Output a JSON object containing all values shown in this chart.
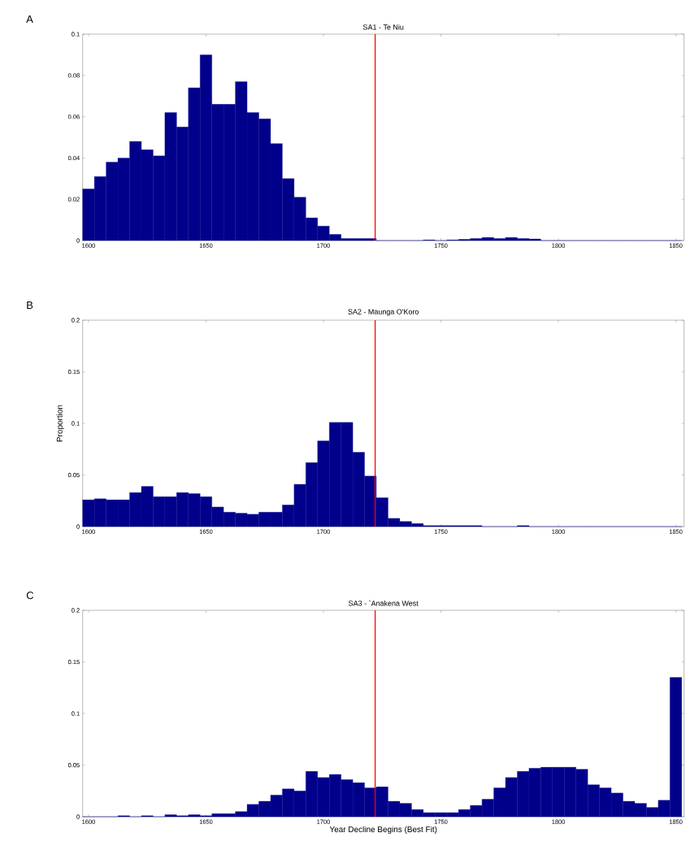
{
  "chart_data": [
    {
      "type": "histogram",
      "title": "SA1 - Te Niu",
      "annotations": [
        "A"
      ],
      "color": "#00008b",
      "bins": [
        1597.5,
        1602.5,
        1607.5,
        1612.5,
        1617.5,
        1622.5,
        1627.5,
        1632.5,
        1637.5,
        1642.5,
        1647.5,
        1652.5,
        1657.5,
        1662.5,
        1667.5,
        1672.5,
        1677.5,
        1682.5,
        1687.5,
        1692.5,
        1697.5,
        1702.5,
        1707.5,
        1712.5,
        1717.5,
        1722.5,
        1727.5,
        1732.5,
        1737.5,
        1742.5,
        1747.5,
        1752.5,
        1757.5,
        1762.5,
        1767.5,
        1772.5,
        1777.5,
        1782.5,
        1787.5,
        1792.5,
        1797.5,
        1802.5,
        1807.5,
        1812.5,
        1817.5,
        1822.5,
        1827.5,
        1832.5,
        1837.5,
        1842.5,
        1847.5,
        1852.5
      ],
      "values": [
        0.025,
        0.031,
        0.038,
        0.04,
        0.048,
        0.044,
        0.041,
        0.062,
        0.055,
        0.074,
        0.09,
        0.066,
        0.066,
        0.077,
        0.062,
        0.059,
        0.047,
        0.03,
        0.021,
        0.011,
        0.007,
        0.003,
        0.001,
        0.001,
        0.001,
        0,
        0,
        0,
        0,
        0.0003,
        0,
        0.0003,
        0.0006,
        0.001,
        0.0015,
        0.001,
        0.0015,
        0.001,
        0.0008,
        0,
        0,
        0,
        0,
        0,
        0,
        0,
        0,
        0,
        0,
        0,
        0
      ],
      "xlim": [
        1597.5,
        1853.5
      ],
      "xticks": [
        1600,
        1650,
        1700,
        1750,
        1800,
        1850
      ],
      "ylim": [
        0,
        0.1
      ],
      "yticks": [
        0,
        0.02,
        0.04,
        0.06,
        0.08,
        0.1
      ],
      "ref_lines": [
        {
          "axis": "x",
          "value": 1722,
          "color": "#ff0000"
        }
      ]
    },
    {
      "type": "histogram",
      "title": "SA2 - Maunga O'Koro",
      "ylabel": "Proportion",
      "annotations": [
        "B"
      ],
      "color": "#00008b",
      "bins": [
        1597.5,
        1602.5,
        1607.5,
        1612.5,
        1617.5,
        1622.5,
        1627.5,
        1632.5,
        1637.5,
        1642.5,
        1647.5,
        1652.5,
        1657.5,
        1662.5,
        1667.5,
        1672.5,
        1677.5,
        1682.5,
        1687.5,
        1692.5,
        1697.5,
        1702.5,
        1707.5,
        1712.5,
        1717.5,
        1722.5,
        1727.5,
        1732.5,
        1737.5,
        1742.5,
        1747.5,
        1752.5,
        1757.5,
        1762.5,
        1767.5,
        1772.5,
        1777.5,
        1782.5,
        1787.5,
        1792.5,
        1797.5,
        1802.5,
        1807.5,
        1812.5,
        1817.5,
        1822.5,
        1827.5,
        1832.5,
        1837.5,
        1842.5,
        1847.5,
        1852.5
      ],
      "values": [
        0.026,
        0.027,
        0.026,
        0.026,
        0.033,
        0.039,
        0.029,
        0.029,
        0.033,
        0.032,
        0.029,
        0.019,
        0.014,
        0.013,
        0.012,
        0.014,
        0.014,
        0.021,
        0.041,
        0.062,
        0.083,
        0.101,
        0.101,
        0.072,
        0.049,
        0.028,
        0.008,
        0.005,
        0.003,
        0.001,
        0.001,
        0.001,
        0.001,
        0.001,
        0,
        0,
        0,
        0.001,
        0,
        0,
        0,
        0,
        0,
        0,
        0,
        0,
        0,
        0,
        0,
        0,
        0
      ],
      "xlim": [
        1597.5,
        1853.5
      ],
      "xticks": [
        1600,
        1650,
        1700,
        1750,
        1800,
        1850
      ],
      "ylim": [
        0,
        0.2
      ],
      "yticks": [
        0,
        0.05,
        0.1,
        0.15,
        0.2
      ],
      "ref_lines": [
        {
          "axis": "x",
          "value": 1722,
          "color": "#ff0000"
        }
      ]
    },
    {
      "type": "histogram",
      "title": "SA3 - `Anakena West",
      "xlabel": "Year Decline Begins (Best Fit)",
      "annotations": [
        "C"
      ],
      "color": "#00008b",
      "bins": [
        1597.5,
        1602.5,
        1607.5,
        1612.5,
        1617.5,
        1622.5,
        1627.5,
        1632.5,
        1637.5,
        1642.5,
        1647.5,
        1652.5,
        1657.5,
        1662.5,
        1667.5,
        1672.5,
        1677.5,
        1682.5,
        1687.5,
        1692.5,
        1697.5,
        1702.5,
        1707.5,
        1712.5,
        1717.5,
        1722.5,
        1727.5,
        1732.5,
        1737.5,
        1742.5,
        1747.5,
        1752.5,
        1757.5,
        1762.5,
        1767.5,
        1772.5,
        1777.5,
        1782.5,
        1787.5,
        1792.5,
        1797.5,
        1802.5,
        1807.5,
        1812.5,
        1817.5,
        1822.5,
        1827.5,
        1832.5,
        1837.5,
        1842.5,
        1847.5,
        1852.5
      ],
      "values": [
        0,
        0,
        0,
        0.001,
        0,
        0.001,
        0,
        0.002,
        0.001,
        0.002,
        0.001,
        0.003,
        0.003,
        0.005,
        0.012,
        0.015,
        0.021,
        0.027,
        0.025,
        0.044,
        0.038,
        0.041,
        0.036,
        0.033,
        0.028,
        0.029,
        0.015,
        0.013,
        0.007,
        0.004,
        0.004,
        0.004,
        0.007,
        0.011,
        0.017,
        0.028,
        0.038,
        0.044,
        0.047,
        0.048,
        0.048,
        0.048,
        0.046,
        0.031,
        0.028,
        0.023,
        0.015,
        0.013,
        0.009,
        0.016,
        0.135
      ],
      "xlim": [
        1597.5,
        1853.5
      ],
      "xticks": [
        1600,
        1650,
        1700,
        1750,
        1800,
        1850
      ],
      "ylim": [
        0,
        0.2
      ],
      "yticks": [
        0,
        0.05,
        0.1,
        0.15,
        0.2
      ],
      "ref_lines": [
        {
          "axis": "x",
          "value": 1722,
          "color": "#ff0000"
        }
      ]
    }
  ]
}
